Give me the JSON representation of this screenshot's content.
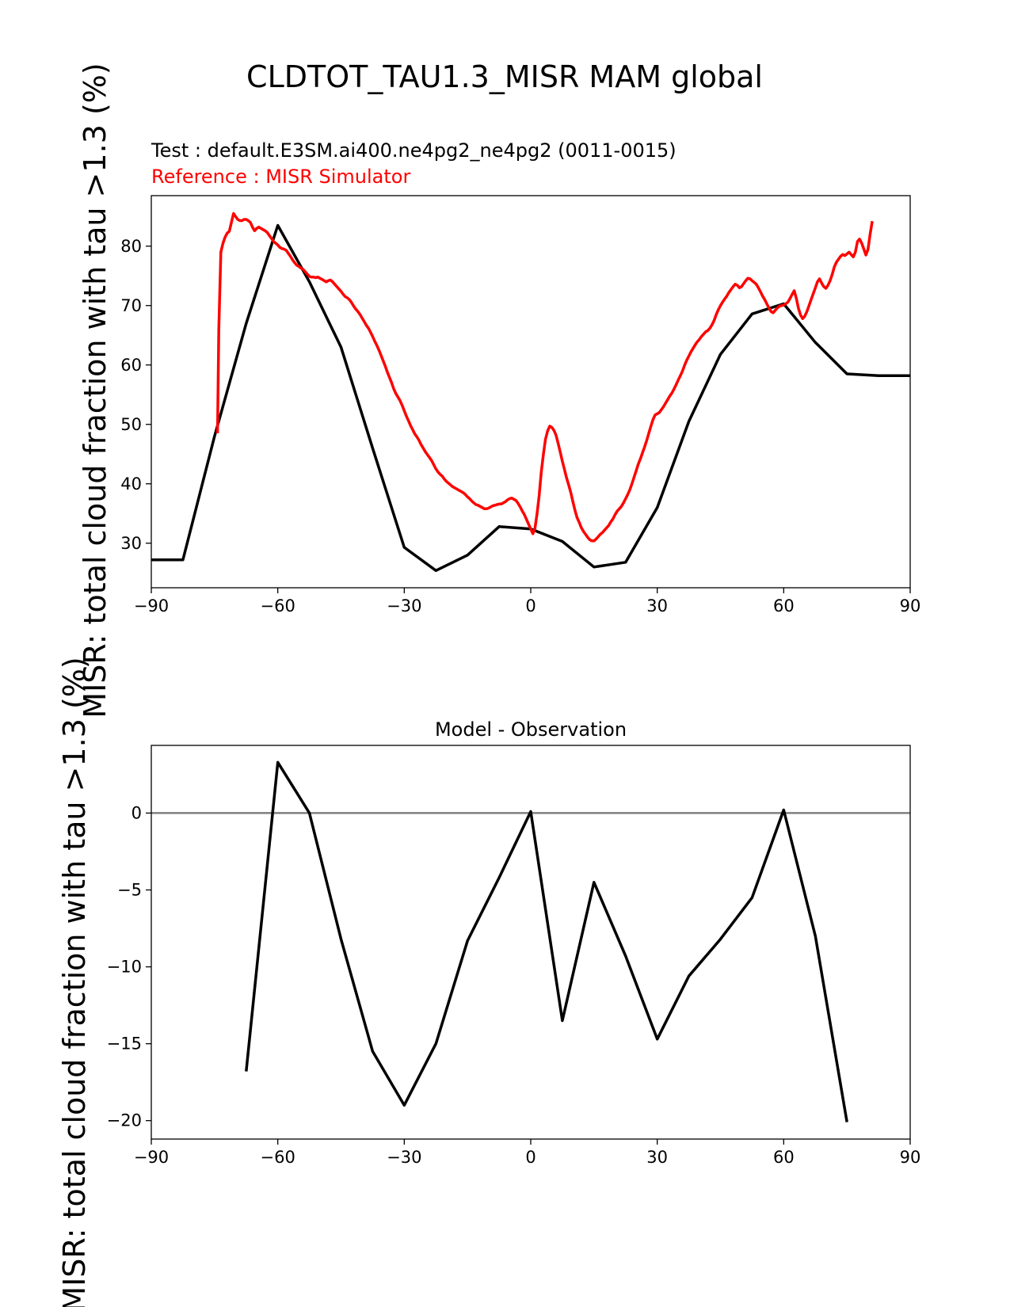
{
  "figure_title": "CLDTOT_TAU1.3_MISR MAM global",
  "chart_data": [
    {
      "type": "line",
      "test_label": "Test : default.E3SM.ai400.ne4pg2_ne4pg2 (0011-0015)",
      "reference_label": "Reference : MISR Simulator",
      "ylabel": "MISR: total cloud fraction with tau >1.3 (%)",
      "xlim": [
        -90,
        90
      ],
      "ylim": [
        22.5,
        88.5
      ],
      "xticks": [
        -90,
        -60,
        -30,
        0,
        30,
        60,
        90
      ],
      "yticks": [
        30,
        40,
        50,
        60,
        70,
        80
      ],
      "series": [
        {
          "color": "#000000",
          "x": [
            -90,
            -82.5,
            -75,
            -67.5,
            -60,
            -52.5,
            -45,
            -37.5,
            -30,
            -22.5,
            -15,
            -7.5,
            0,
            7.5,
            15,
            22.5,
            30,
            37.5,
            45,
            52.5,
            60,
            67.5,
            75,
            82.5,
            90
          ],
          "y": [
            27.2,
            27.2,
            48,
            67,
            83.5,
            74,
            63,
            46,
            29.3,
            25.4,
            28,
            32.8,
            32.4,
            30.3,
            26,
            26.8,
            36,
            50.5,
            61.8,
            68.6,
            70.3,
            63.8,
            58.5,
            58.2,
            58.2
          ]
        },
        {
          "color": "#ff0000",
          "x": [
            -74.3,
            -74,
            -73.5,
            -73,
            -72.5,
            -72,
            -71.5,
            -71,
            -70.5,
            -70,
            -69.5,
            -69,
            -68.5,
            -68,
            -67.5,
            -67,
            -66.5,
            -66,
            -65.5,
            -65,
            -64.5,
            -64,
            -63.5,
            -63,
            -62.5,
            -62,
            -61.5,
            -61,
            -60.5,
            -60,
            -59.5,
            -59,
            -58.5,
            -58,
            -57.5,
            -57,
            -56.5,
            -56,
            -55.5,
            -55,
            -54.5,
            -54,
            -53.5,
            -53,
            -52.5,
            -52,
            -51.5,
            -51,
            -50.5,
            -50,
            -49.5,
            -49,
            -48.5,
            -48,
            -47.5,
            -47,
            -46.5,
            -46,
            -45.5,
            -45,
            -44.5,
            -44,
            -43.5,
            -43,
            -42.5,
            -42,
            -41.5,
            -41,
            -40.5,
            -40,
            -39.5,
            -39,
            -38.5,
            -38,
            -37.5,
            -37,
            -36.5,
            -36,
            -35.5,
            -35,
            -34.5,
            -34,
            -33.5,
            -33,
            -32.5,
            -32,
            -31.5,
            -31,
            -30.5,
            -30,
            -29.5,
            -29,
            -28.5,
            -28,
            -27.5,
            -27,
            -26.5,
            -26,
            -25.5,
            -25,
            -24.5,
            -24,
            -23.5,
            -23,
            -22.5,
            -22,
            -21.5,
            -21,
            -20.5,
            -20,
            -19.5,
            -19,
            -18.5,
            -18,
            -17.5,
            -17,
            -16.5,
            -16,
            -15.5,
            -15,
            -14.5,
            -14,
            -13.5,
            -13,
            -12.5,
            -12,
            -11.5,
            -11,
            -10.5,
            -10,
            -9.5,
            -9,
            -8.5,
            -8,
            -7.5,
            -7,
            -6.5,
            -6,
            -5.5,
            -5,
            -4.5,
            -4,
            -3.5,
            -3,
            -2.5,
            -2,
            -1.5,
            -1,
            -0.5,
            0,
            0.5,
            1,
            1.5,
            2,
            2.5,
            3,
            3.5,
            4,
            4.5,
            5,
            5.5,
            6,
            6.5,
            7,
            7.5,
            8,
            8.5,
            9,
            9.5,
            10,
            10.5,
            11,
            11.5,
            12,
            12.5,
            13,
            13.5,
            14,
            14.5,
            15,
            15.5,
            16,
            16.5,
            17,
            17.5,
            18,
            18.5,
            19,
            19.5,
            20,
            20.5,
            21,
            21.5,
            22,
            22.5,
            23,
            23.5,
            24,
            24.5,
            25,
            25.5,
            26,
            26.5,
            27,
            27.5,
            28,
            28.5,
            29,
            29.5,
            30,
            30.5,
            31,
            31.5,
            32,
            32.5,
            33,
            33.5,
            34,
            34.5,
            35,
            35.5,
            36,
            36.5,
            37,
            37.5,
            38,
            38.5,
            39,
            39.5,
            40,
            40.5,
            41,
            41.5,
            42,
            42.5,
            43,
            43.5,
            44,
            44.5,
            45,
            45.5,
            46,
            46.5,
            47,
            47.5,
            48,
            48.5,
            49,
            49.5,
            50,
            50.5,
            51,
            51.5,
            52,
            52.5,
            53,
            53.5,
            54,
            54.5,
            55,
            55.5,
            56,
            56.5,
            57,
            57.5,
            58,
            58.5,
            59,
            59.5,
            60,
            60.5,
            61,
            61.5,
            62,
            62.5,
            63,
            63.5,
            64,
            64.5,
            65,
            65.5,
            66,
            66.5,
            67,
            67.5,
            68,
            68.5,
            69,
            69.5,
            70,
            70.5,
            71,
            71.5,
            72,
            72.5,
            73,
            73.5,
            74,
            74.5,
            75,
            75.5,
            76,
            76.5,
            77,
            77.5,
            78,
            78.5,
            79,
            79.5,
            80,
            80.5,
            81
          ],
          "y": [
            48.5,
            66,
            79,
            80.5,
            81.5,
            82.2,
            82.5,
            84,
            85.5,
            85,
            84.5,
            84.3,
            84.3,
            84.5,
            84.5,
            84.3,
            84,
            83.2,
            82.6,
            83,
            83.2,
            83,
            82.8,
            82.6,
            82.3,
            81.8,
            81.3,
            80.8,
            80.5,
            80.2,
            79.8,
            79.6,
            79.5,
            79.3,
            78.8,
            78.3,
            77.7,
            77.2,
            76.8,
            76.6,
            76.3,
            76.1,
            75.7,
            75.3,
            74.9,
            74.8,
            74.8,
            74.7,
            74.8,
            74.6,
            74.4,
            74.2,
            74,
            74.2,
            74.3,
            74,
            73.6,
            73.2,
            72.8,
            72.4,
            71.9,
            71.5,
            71.3,
            71,
            70.5,
            69.9,
            69.4,
            69,
            68.5,
            67.9,
            67.3,
            66.7,
            66.2,
            65.5,
            64.8,
            64,
            63.3,
            62.5,
            61.6,
            60.7,
            59.8,
            58.8,
            57.9,
            57,
            56,
            55.2,
            54.6,
            54,
            53.2,
            52.3,
            51.4,
            50.6,
            49.8,
            49.1,
            48.4,
            47.9,
            47.3,
            46.6,
            46,
            45.4,
            44.9,
            44.4,
            43.9,
            43.2,
            42.5,
            42,
            41.6,
            41.3,
            40.8,
            40.4,
            40.1,
            39.8,
            39.5,
            39.3,
            39.1,
            38.9,
            38.7,
            38.5,
            38.2,
            37.8,
            37.5,
            37.1,
            36.8,
            36.5,
            36.4,
            36.2,
            36,
            35.8,
            35.8,
            35.9,
            36.1,
            36.3,
            36.4,
            36.5,
            36.6,
            36.6,
            36.8,
            37,
            37.3,
            37.5,
            37.6,
            37.4,
            37.2,
            36.7,
            36.1,
            35.4,
            34.8,
            34,
            33.2,
            32.4,
            31.6,
            32.5,
            35,
            38,
            42,
            45,
            47.5,
            48.9,
            49.7,
            49.5,
            49,
            48.2,
            46.8,
            45.3,
            43.8,
            42.4,
            41,
            39.8,
            38.5,
            37,
            35.5,
            34.3,
            33.5,
            32.6,
            32,
            31.5,
            31,
            30.6,
            30.4,
            30.4,
            30.7,
            31.1,
            31.5,
            31.8,
            32.2,
            32.6,
            33,
            33.6,
            34.1,
            34.8,
            35.4,
            35.8,
            36.2,
            36.8,
            37.5,
            38.2,
            39,
            40,
            41.1,
            42.2,
            43.3,
            44.2,
            45.2,
            46.2,
            47.3,
            48.5,
            49.7,
            50.8,
            51.6,
            51.8,
            52,
            52.5,
            53,
            53.6,
            54.2,
            54.8,
            55.3,
            56,
            56.7,
            57.5,
            58.2,
            59,
            60,
            60.8,
            61.5,
            62.2,
            62.8,
            63.4,
            63.9,
            64.3,
            64.8,
            65.2,
            65.6,
            65.8,
            66.2,
            66.8,
            67.5,
            68.5,
            69.3,
            70,
            70.6,
            71.1,
            71.6,
            72.2,
            72.7,
            73.2,
            73.6,
            73.4,
            73,
            73.2,
            73.7,
            74.2,
            74.6,
            74.5,
            74.2,
            73.9,
            73.6,
            73,
            72.3,
            71.6,
            71,
            70.3,
            69.6,
            69,
            68.8,
            69.2,
            69.6,
            69.9,
            70,
            70.1,
            70.3,
            70.6,
            71.2,
            71.9,
            72.5,
            71.2,
            69.5,
            68.4,
            67.8,
            68.2,
            69,
            70,
            71,
            72,
            73,
            74,
            74.5,
            73.8,
            73.2,
            72.9,
            73.4,
            74.2,
            75.2,
            76.5,
            77.3,
            77.8,
            78.3,
            78.6,
            78.4,
            78.7,
            79,
            78.6,
            78.2,
            79,
            80.8,
            81.2,
            80.5,
            79.5,
            78.5,
            79.5,
            82,
            84.2
          ]
        }
      ]
    },
    {
      "type": "line",
      "title": "Model - Observation",
      "ylabel": "MISR: total cloud fraction with tau >1.3 (%)",
      "xlim": [
        -90,
        90
      ],
      "ylim": [
        -21.2,
        4.4
      ],
      "xticks": [
        -90,
        -60,
        -30,
        0,
        30,
        60,
        90
      ],
      "yticks": [
        -20,
        -15,
        -10,
        -5,
        0
      ],
      "zero_line_color": "#808080",
      "series": [
        {
          "color": "#000000",
          "x": [
            -67.5,
            -60,
            -52.5,
            -45,
            -37.5,
            -30,
            -22.5,
            -15,
            -7.5,
            0,
            7.5,
            15,
            22.5,
            30,
            37.5,
            45,
            52.5,
            60,
            67.5,
            75
          ],
          "y": [
            -16.8,
            3.3,
            0,
            -8.2,
            -15.5,
            -19,
            -15,
            -8.3,
            -4.2,
            0.1,
            -13.5,
            -4.5,
            -9.3,
            -14.7,
            -10.6,
            -8.2,
            -5.5,
            0.2,
            -8,
            -20.1
          ]
        }
      ]
    }
  ]
}
